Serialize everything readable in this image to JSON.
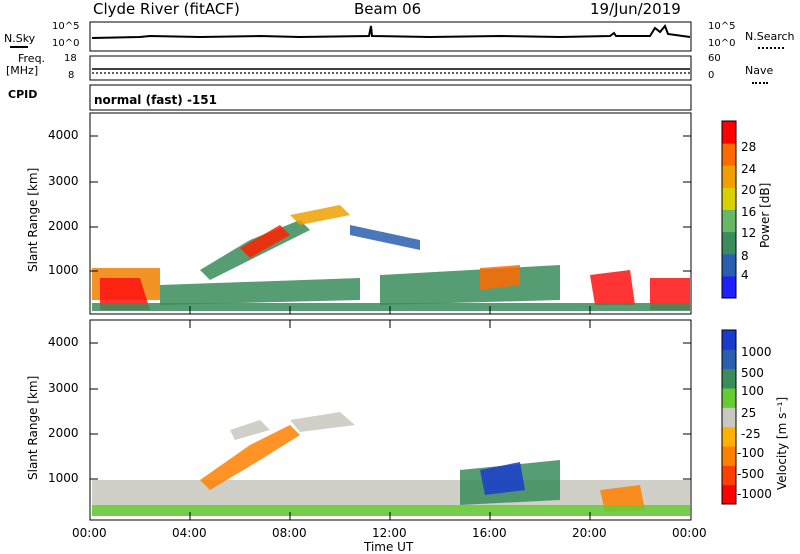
{
  "header": {
    "station": "Clyde River (fitACF)",
    "beam": "Beam 06",
    "date": "19/Jun/2019"
  },
  "top_panels": {
    "nsky_label": "N.Sky",
    "nsearch_label": "N.Search",
    "freq_label_1": "Freq.",
    "freq_label_2": "[MHz]",
    "nave_label": "Nave",
    "cpid_label": "CPID",
    "cpid_value": "normal (fast) -151",
    "noise_left_top": "10^5",
    "noise_left_bottom": "10^0",
    "noise_right_top": "10^5",
    "noise_right_bottom": "10^0",
    "freq_top": "18",
    "freq_bottom": "8",
    "nave_top": "60",
    "nave_bottom": "0"
  },
  "chart_data": [
    {
      "type": "heatmap",
      "name": "power",
      "ylabel": "Slant Range [km]",
      "yticks": [
        "1000",
        "2000",
        "3000",
        "4000"
      ],
      "ylim": [
        180,
        4600
      ],
      "colorbar_label": "Power [dB]",
      "colorbar_ticks": [
        "4",
        "8",
        "12",
        "16",
        "20",
        "24",
        "28"
      ],
      "colorbar_colors": [
        "#2020ff",
        "#2a5fb0",
        "#3a8c5a",
        "#66b866",
        "#d8d000",
        "#f0a000",
        "#ff6a00",
        "#ff0000"
      ],
      "grid": false
    },
    {
      "type": "heatmap",
      "name": "velocity",
      "ylabel": "Slant Range [km]",
      "yticks": [
        "1000",
        "2000",
        "3000",
        "4000"
      ],
      "ylim": [
        180,
        4600
      ],
      "colorbar_label": "Velocity [m s⁻¹]",
      "colorbar_ticks": [
        "1000",
        "500",
        "100",
        "25",
        "-25",
        "-100",
        "-500",
        "-1000"
      ],
      "colorbar_colors": [
        "#1a3ccc",
        "#2a5fb0",
        "#3a8c5a",
        "#66cc33",
        "#c8c8c0",
        "#ffb000",
        "#ff8000",
        "#ff4000",
        "#ff0000"
      ],
      "grid": false
    }
  ],
  "x_axis": {
    "label": "Time UT",
    "ticks": [
      "00:00",
      "04:00",
      "08:00",
      "12:00",
      "16:00",
      "20:00",
      "00:00"
    ]
  }
}
